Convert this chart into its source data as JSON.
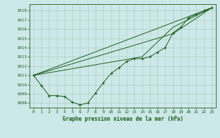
{
  "bg_color": "#cde8e8",
  "grid_color": "#b0d4c8",
  "line_color": "#1a5c1a",
  "xlabel": "Graphe pression niveau de la mer (hPa)",
  "xlim": [
    -0.5,
    23.5
  ],
  "ylim": [
    1007.5,
    1018.7
  ],
  "yticks": [
    1008,
    1009,
    1010,
    1011,
    1012,
    1013,
    1014,
    1015,
    1016,
    1017,
    1018
  ],
  "xticks": [
    0,
    1,
    2,
    3,
    4,
    5,
    6,
    7,
    8,
    9,
    10,
    11,
    12,
    13,
    14,
    15,
    16,
    17,
    18,
    19,
    20,
    21,
    22,
    23
  ],
  "series_main": {
    "x": [
      0,
      1,
      2,
      3,
      4,
      5,
      6,
      7,
      8,
      9,
      10,
      11,
      12,
      13,
      14,
      15,
      16,
      17,
      18,
      19,
      20,
      21,
      22,
      23
    ],
    "y": [
      1011.0,
      1009.9,
      1008.8,
      1008.8,
      1008.7,
      1008.1,
      1007.8,
      1008.0,
      1009.1,
      1010.2,
      1011.2,
      1011.8,
      1012.5,
      1012.8,
      1012.8,
      1013.0,
      1013.5,
      1014.0,
      1015.6,
      1016.2,
      1017.2,
      1017.6,
      1018.0,
      1018.3
    ]
  },
  "series_lines": [
    {
      "x": [
        0,
        23
      ],
      "y": [
        1011.0,
        1018.3
      ]
    },
    {
      "x": [
        0,
        18,
        23
      ],
      "y": [
        1011.0,
        1015.5,
        1018.3
      ]
    },
    {
      "x": [
        0,
        14,
        18,
        23
      ],
      "y": [
        1011.0,
        1013.0,
        1016.2,
        1018.3
      ]
    }
  ]
}
